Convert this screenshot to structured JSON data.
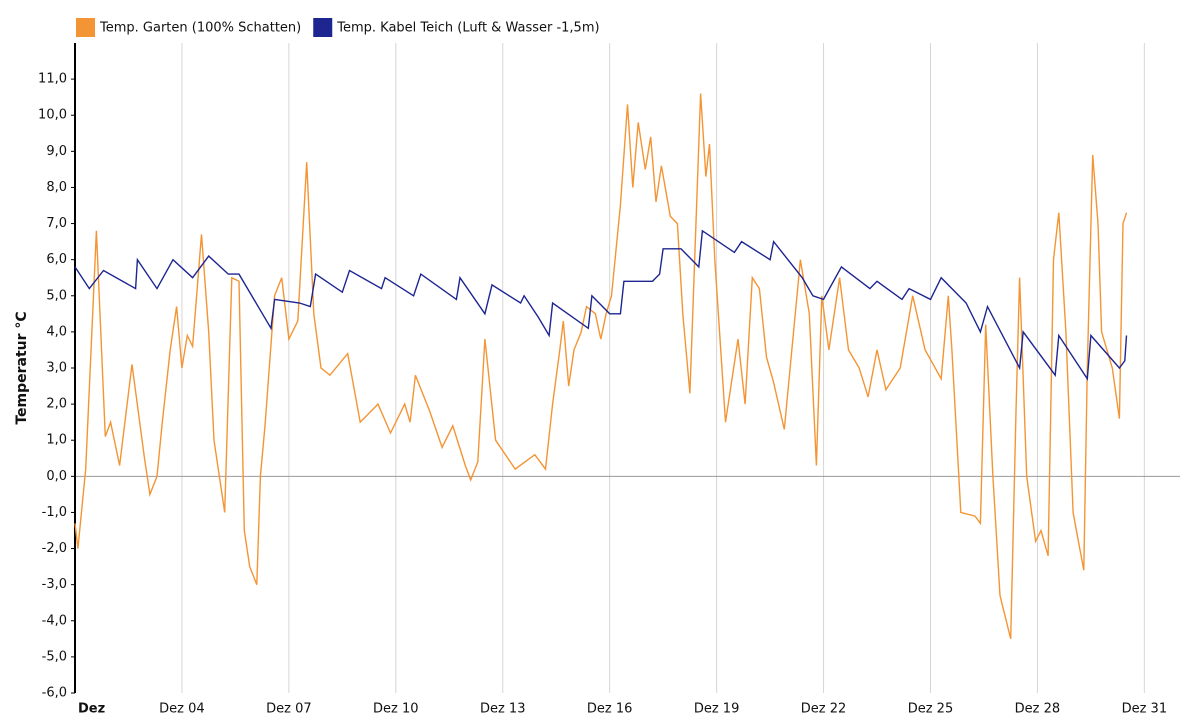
{
  "chart_data": {
    "type": "line",
    "y_label": "Temperatur °C",
    "xlim": [
      0,
      31
    ],
    "ylim": [
      -6,
      12
    ],
    "xticks": [
      {
        "value": 0,
        "label": "Dez"
      },
      {
        "value": 3,
        "label": "Dez 04"
      },
      {
        "value": 6,
        "label": "Dez 07"
      },
      {
        "value": 9,
        "label": "Dez 10"
      },
      {
        "value": 12,
        "label": "Dez 13"
      },
      {
        "value": 15,
        "label": "Dez 16"
      },
      {
        "value": 18,
        "label": "Dez 19"
      },
      {
        "value": 21,
        "label": "Dez 22"
      },
      {
        "value": 24,
        "label": "Dez 25"
      },
      {
        "value": 27,
        "label": "Dez 28"
      },
      {
        "value": 30,
        "label": "Dez 31"
      }
    ],
    "yticks": [
      {
        "value": -6,
        "label": "-6,0"
      },
      {
        "value": -5,
        "label": "-5,0"
      },
      {
        "value": -4,
        "label": "-4,0"
      },
      {
        "value": -3,
        "label": "-3,0"
      },
      {
        "value": -2,
        "label": "-2,0"
      },
      {
        "value": -1,
        "label": "-1,0"
      },
      {
        "value": 0,
        "label": "0,0"
      },
      {
        "value": 1,
        "label": "1,0"
      },
      {
        "value": 2,
        "label": "2,0"
      },
      {
        "value": 3,
        "label": "3,0"
      },
      {
        "value": 4,
        "label": "4,0"
      },
      {
        "value": 5,
        "label": "5,0"
      },
      {
        "value": 6,
        "label": "6,0"
      },
      {
        "value": 7,
        "label": "7,0"
      },
      {
        "value": 8,
        "label": "8,0"
      },
      {
        "value": 9,
        "label": "9,0"
      },
      {
        "value": 10,
        "label": "10,0"
      },
      {
        "value": 11,
        "label": "11,0"
      }
    ],
    "series": [
      {
        "name": "Temp. Garten (100% Schatten)",
        "color": "#f39534",
        "x": [
          0,
          0.08,
          0.3,
          0.6,
          0.85,
          1.0,
          1.25,
          1.6,
          1.95,
          2.1,
          2.3,
          2.45,
          2.67,
          2.85,
          3.0,
          3.15,
          3.3,
          3.55,
          3.75,
          3.9,
          4.2,
          4.4,
          4.6,
          4.75,
          4.9,
          5.1,
          5.2,
          5.33,
          5.6,
          5.8,
          6.0,
          6.25,
          6.5,
          6.7,
          6.9,
          7.15,
          7.65,
          8.0,
          8.5,
          8.85,
          9.25,
          9.4,
          9.55,
          9.95,
          10.3,
          10.6,
          10.95,
          11.1,
          11.3,
          11.5,
          11.8,
          12.35,
          12.9,
          13.2,
          13.4,
          13.6,
          13.7,
          13.85,
          14.0,
          14.2,
          14.35,
          14.6,
          14.75,
          14.9,
          15.05,
          15.3,
          15.5,
          15.65,
          15.8,
          16.0,
          16.15,
          16.3,
          16.45,
          16.7,
          16.9,
          17.05,
          17.25,
          17.55,
          17.7,
          17.8,
          17.95,
          18.25,
          18.6,
          18.8,
          19.0,
          19.2,
          19.4,
          19.6,
          19.9,
          20.35,
          20.6,
          20.8,
          20.95,
          21.15,
          21.45,
          21.7,
          22.0,
          22.25,
          22.5,
          22.75,
          23.15,
          23.5,
          23.85,
          24.3,
          24.5,
          24.6,
          24.85,
          25.25,
          25.4,
          25.55,
          25.75,
          25.95,
          26.25,
          26.4,
          26.5,
          26.7,
          26.95,
          27.1,
          27.3,
          27.45,
          27.6,
          27.8,
          28.0,
          28.15,
          28.3,
          28.4,
          28.55,
          28.7,
          28.8,
          29.1,
          29.3,
          29.4,
          29.5
        ],
        "values": [
          -1.3,
          -2.0,
          0.2,
          6.8,
          1.1,
          1.5,
          0.3,
          3.1,
          0.5,
          -0.5,
          0.0,
          1.5,
          3.5,
          4.7,
          3.0,
          3.9,
          3.6,
          6.7,
          4.0,
          1.0,
          -1.0,
          5.5,
          5.4,
          -1.5,
          -2.5,
          -3.0,
          0.0,
          1.4,
          5.0,
          5.5,
          3.8,
          4.3,
          8.7,
          4.5,
          3.0,
          2.8,
          3.4,
          1.5,
          2.0,
          1.2,
          2.0,
          1.5,
          2.8,
          1.8,
          0.8,
          1.4,
          0.3,
          -0.1,
          0.4,
          3.8,
          1.0,
          0.2,
          0.6,
          0.2,
          2.0,
          3.5,
          4.3,
          2.5,
          3.5,
          4.0,
          4.7,
          4.5,
          3.8,
          4.5,
          5.0,
          7.5,
          10.3,
          8.0,
          9.8,
          8.5,
          9.4,
          7.6,
          8.6,
          7.2,
          7.0,
          4.5,
          2.3,
          10.6,
          8.3,
          9.2,
          6.0,
          1.5,
          3.8,
          2.0,
          5.5,
          5.2,
          3.3,
          2.6,
          1.3,
          6.0,
          4.5,
          0.3,
          5.0,
          3.5,
          5.5,
          3.5,
          3.0,
          2.2,
          3.5,
          2.4,
          3.0,
          5.0,
          3.5,
          2.7,
          5.0,
          3.5,
          -1.0,
          -1.1,
          -1.3,
          4.2,
          0.0,
          -3.3,
          -4.5,
          1.8,
          5.5,
          0.0,
          -1.8,
          -1.5,
          -2.2,
          6.0,
          7.3,
          4.0,
          -1.0,
          -1.8,
          -2.6,
          3.0,
          8.9,
          7.0,
          4.0,
          3.0,
          1.6,
          7.0,
          7.3
        ]
      },
      {
        "name": "Temp. Kabel Teich (Luft & Wasser -1,5m)",
        "color": "#1d2591",
        "x": [
          0,
          0.4,
          0.8,
          1.7,
          1.75,
          2.3,
          2.75,
          3.3,
          3.75,
          4.3,
          4.6,
          5.5,
          5.6,
          6.3,
          6.6,
          6.75,
          7.5,
          7.7,
          8.6,
          8.7,
          9.5,
          9.7,
          10.7,
          10.8,
          11.5,
          11.7,
          12.5,
          12.6,
          13.0,
          13.3,
          13.4,
          14.4,
          14.5,
          15.0,
          15.3,
          15.4,
          16.2,
          16.4,
          16.5,
          17.0,
          17.5,
          17.6,
          18.5,
          18.7,
          19.5,
          19.6,
          20.4,
          20.7,
          21.0,
          21.5,
          22.3,
          22.5,
          23.2,
          23.4,
          24.0,
          24.3,
          25.0,
          25.4,
          25.6,
          26.5,
          26.6,
          27.5,
          27.6,
          28.4,
          28.5,
          29.3,
          29.45,
          29.5
        ],
        "values": [
          5.8,
          5.2,
          5.7,
          5.2,
          6.0,
          5.2,
          6.0,
          5.5,
          6.1,
          5.6,
          5.6,
          4.1,
          4.9,
          4.8,
          4.7,
          5.6,
          5.1,
          5.7,
          5.2,
          5.5,
          5.0,
          5.6,
          4.9,
          5.5,
          4.5,
          5.3,
          4.8,
          5.0,
          4.4,
          3.9,
          4.8,
          4.1,
          5.0,
          4.5,
          4.5,
          5.4,
          5.4,
          5.6,
          6.3,
          6.3,
          5.8,
          6.8,
          6.2,
          6.5,
          6.0,
          6.5,
          5.5,
          5.0,
          4.9,
          5.8,
          5.2,
          5.4,
          4.9,
          5.2,
          4.9,
          5.5,
          4.8,
          4.0,
          4.7,
          3.0,
          4.0,
          2.8,
          3.9,
          2.7,
          3.9,
          3.0,
          3.2,
          3.9
        ]
      }
    ]
  }
}
